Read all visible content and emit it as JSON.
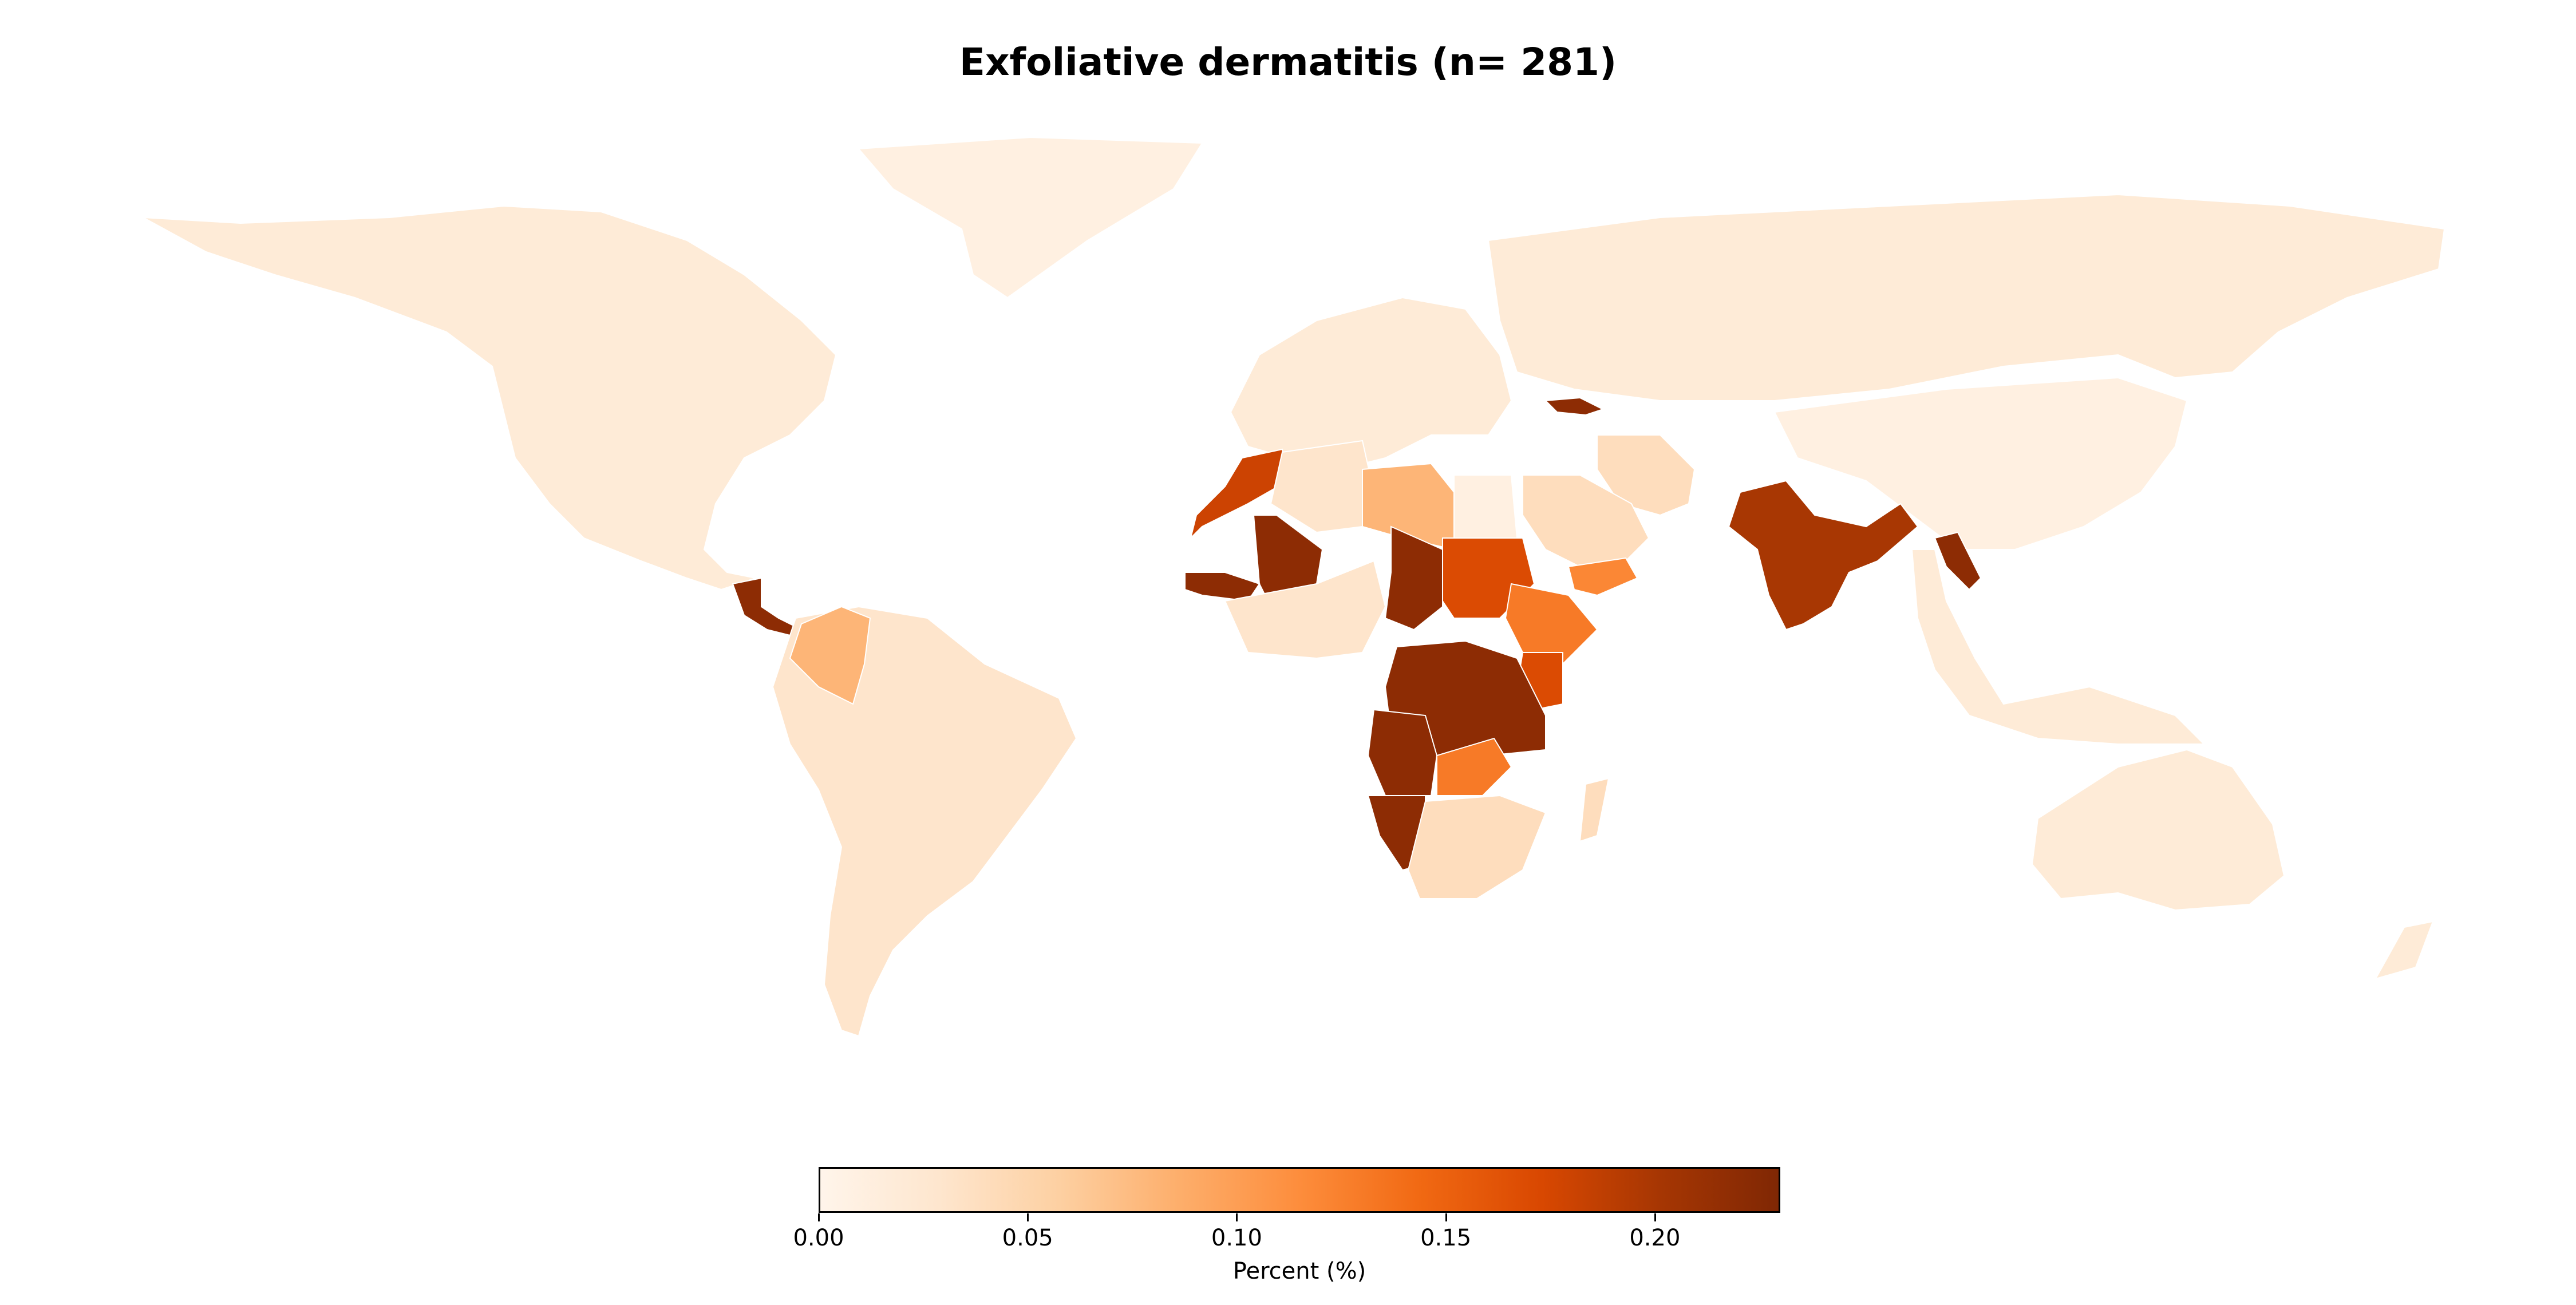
{
  "chart_data": {
    "type": "choropleth",
    "title": "Exfoliative dermatitis (n= 281)",
    "colorbar": {
      "label": "Percent (%)",
      "min": 0.0,
      "max": 0.23,
      "ticks": [
        "0.00",
        "0.05",
        "0.10",
        "0.15",
        "0.20"
      ],
      "tick_values": [
        0.0,
        0.05,
        0.1,
        0.15,
        0.2
      ],
      "colormap": [
        "#fff5eb",
        "#fee6ce",
        "#fdd0a2",
        "#fdae6b",
        "#fd8d3c",
        "#f16913",
        "#d94801",
        "#a63603",
        "#7f2704"
      ]
    },
    "regions": [
      {
        "name": "North America",
        "value": 0.02
      },
      {
        "name": "Greenland",
        "value": 0.01
      },
      {
        "name": "South America",
        "value": 0.03
      },
      {
        "name": "Colombia",
        "value": 0.08
      },
      {
        "name": "Central America",
        "value": 0.22
      },
      {
        "name": "Europe",
        "value": 0.02
      },
      {
        "name": "Russia",
        "value": 0.02
      },
      {
        "name": "Georgia",
        "value": 0.22
      },
      {
        "name": "Morocco",
        "value": 0.18
      },
      {
        "name": "Algeria",
        "value": 0.03
      },
      {
        "name": "Libya",
        "value": 0.08
      },
      {
        "name": "Egypt",
        "value": 0.01
      },
      {
        "name": "Mali",
        "value": 0.22
      },
      {
        "name": "Senegal",
        "value": 0.22
      },
      {
        "name": "Chad",
        "value": 0.22
      },
      {
        "name": "Sudan",
        "value": 0.17
      },
      {
        "name": "Ethiopia",
        "value": 0.13
      },
      {
        "name": "Kenya",
        "value": 0.17
      },
      {
        "name": "Central Africa",
        "value": 0.22
      },
      {
        "name": "Angola",
        "value": 0.22
      },
      {
        "name": "Namibia",
        "value": 0.22
      },
      {
        "name": "Zambia",
        "value": 0.13
      },
      {
        "name": "South Africa",
        "value": 0.04
      },
      {
        "name": "Saudi Arabia",
        "value": 0.04
      },
      {
        "name": "Yemen",
        "value": 0.12
      },
      {
        "name": "Iran",
        "value": 0.04
      },
      {
        "name": "India",
        "value": 0.2
      },
      {
        "name": "Laos",
        "value": 0.22
      },
      {
        "name": "China",
        "value": 0.01
      },
      {
        "name": "Southeast Asia",
        "value": 0.02
      },
      {
        "name": "Australia",
        "value": 0.02
      }
    ]
  }
}
